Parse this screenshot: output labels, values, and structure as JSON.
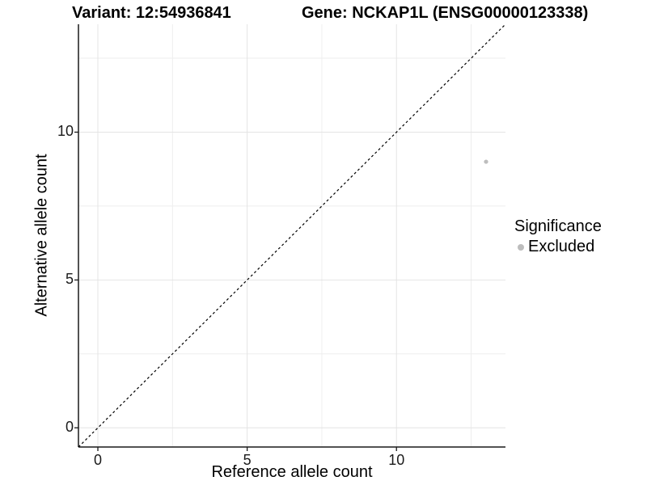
{
  "chart_data": {
    "type": "scatter",
    "title_left": "Variant: 12:54936841",
    "title_right": "Gene: NCKAP1L (ENSG00000123338)",
    "xlabel": "Reference allele count",
    "ylabel": "Alternative allele count",
    "xlim": [
      -0.65,
      13.65
    ],
    "ylim": [
      -0.65,
      13.65
    ],
    "xticks": [
      0,
      5,
      10
    ],
    "yticks": [
      0,
      5,
      10
    ],
    "minor_xticks": [
      2.5,
      7.5,
      12.5
    ],
    "minor_yticks": [
      2.5,
      7.5,
      12.5
    ],
    "grid": "major+minor",
    "reference_line": {
      "kind": "identity",
      "slope": 1,
      "intercept": 0,
      "style": "dashed",
      "color": "#000000"
    },
    "series": [
      {
        "name": "Excluded",
        "marker_color": "#bdbdbd",
        "points": [
          [
            13,
            9
          ]
        ]
      }
    ],
    "legend": {
      "title": "Significance",
      "position": "right",
      "items": [
        {
          "label": "Excluded",
          "marker_color": "#bdbdbd"
        }
      ]
    },
    "colors": {
      "grid_major": "#e4e4e4",
      "grid_minor": "#eeeeee",
      "axis_line": "#1a1a1a",
      "tick_text": "#1a1a1a",
      "title_text": "#000000"
    }
  }
}
